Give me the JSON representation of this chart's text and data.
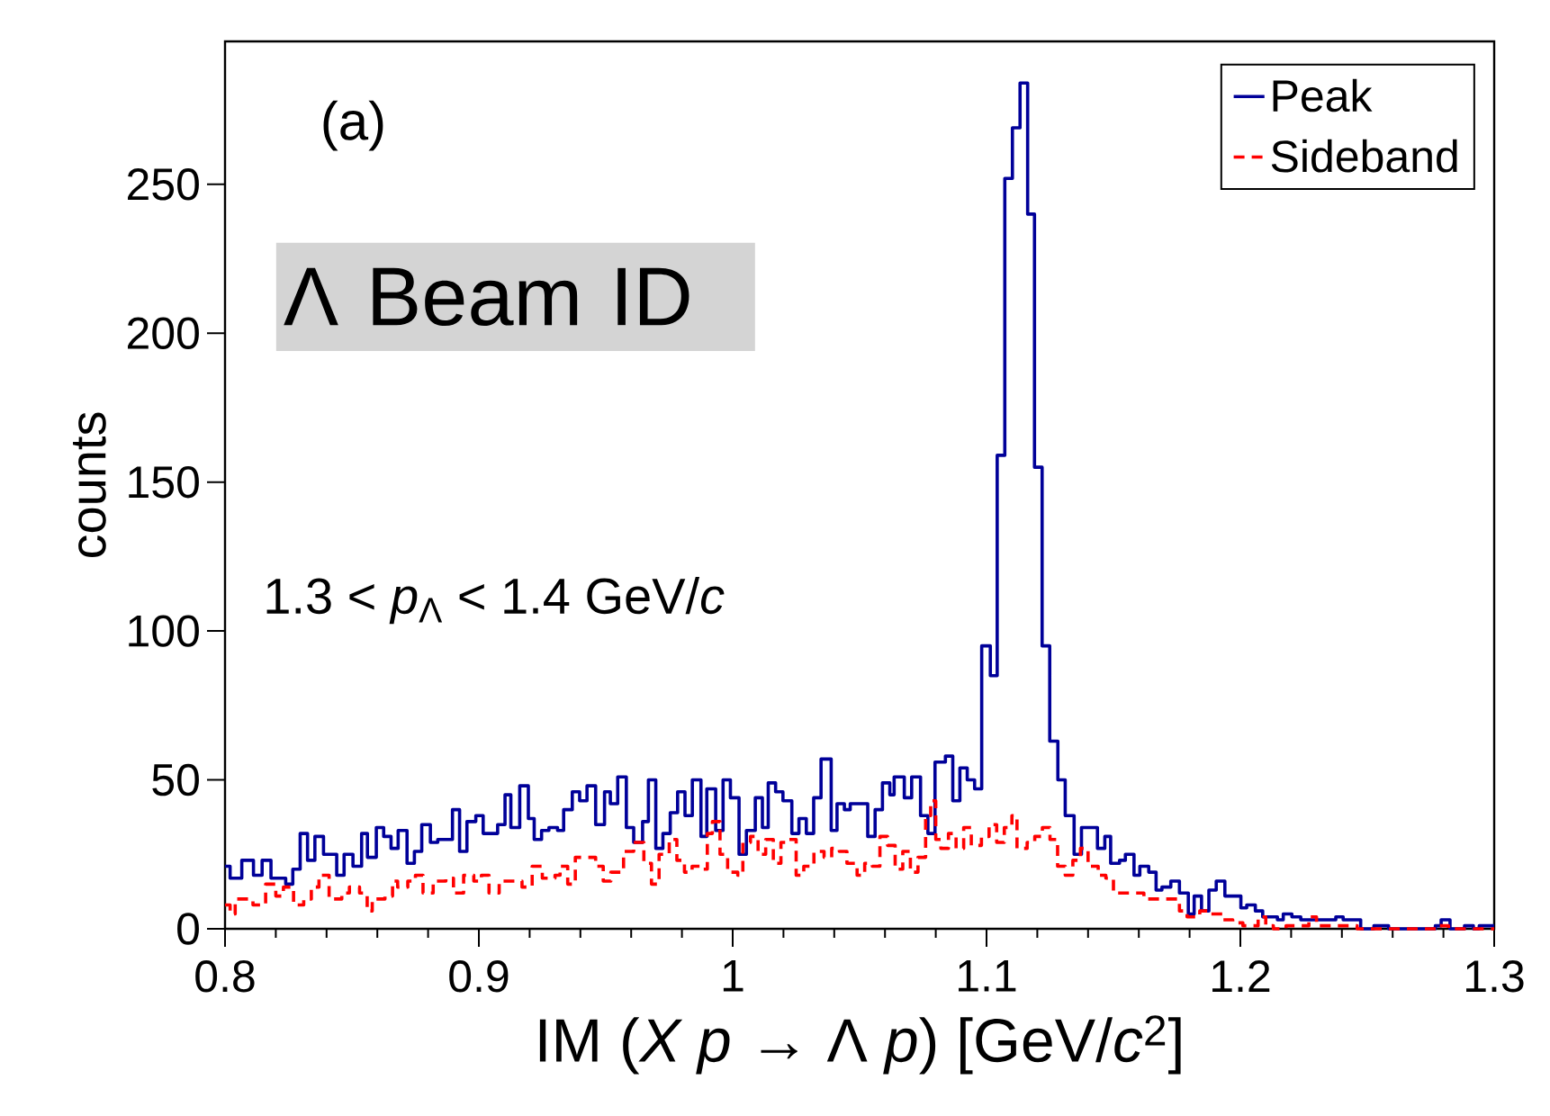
{
  "chart_data": {
    "type": "step",
    "xlabel": "IM (*X p* → Λ *p*) [GeV/*c*$^{2}$]",
    "ylabel": "counts",
    "annotations": [
      "(a)",
      "Λ Beam ID",
      "1.3 < *p*$_{Λ}$ < 1.4 GeV/*c*"
    ],
    "xlim": [
      0.8,
      1.3
    ],
    "ylim": [
      0,
      298
    ],
    "xticks": [
      0.8,
      0.9,
      {
        "value": 1.0,
        "label": "1"
      },
      1.1,
      1.2,
      1.3
    ],
    "yticks": [
      0,
      50,
      100,
      150,
      200,
      250
    ],
    "legend": "top right",
    "series": [
      {
        "name": "Peak",
        "color": "#000099",
        "line_style": "solid",
        "x": [
          0.8,
          0.802,
          0.8066,
          0.8112,
          0.8146,
          0.8181,
          0.8239,
          0.8267,
          0.8296,
          0.8325,
          0.8354,
          0.8388,
          0.844,
          0.8469,
          0.8504,
          0.8538,
          0.8561,
          0.8596,
          0.8625,
          0.8654,
          0.8682,
          0.8717,
          0.8746,
          0.8775,
          0.8809,
          0.8838,
          0.8896,
          0.8924,
          0.8953,
          0.8988,
          0.9017,
          0.9074,
          0.9103,
          0.9126,
          0.9161,
          0.9195,
          0.9218,
          0.9247,
          0.9276,
          0.931,
          0.9334,
          0.9368,
          0.9397,
          0.9426,
          0.946,
          0.9495,
          0.9518,
          0.9547,
          0.9581,
          0.961,
          0.9645,
          0.9668,
          0.9697,
          0.9725,
          0.9754,
          0.9783,
          0.9812,
          0.9841,
          0.9875,
          0.9898,
          0.9933,
          0.9962,
          0.9991,
          1.0025,
          1.0054,
          1.0089,
          1.0117,
          1.014,
          1.0169,
          1.0198,
          1.0233,
          1.0261,
          1.029,
          1.0319,
          1.0348,
          1.0388,
          1.0411,
          1.044,
          1.0463,
          1.0532,
          1.0561,
          1.059,
          1.0619,
          1.0636,
          1.0676,
          1.0705,
          1.074,
          1.0769,
          1.0797,
          1.0838,
          1.0867,
          1.0895,
          1.0924,
          1.0953,
          1.0981,
          1.1015,
          1.1042,
          1.1072,
          1.1102,
          1.1132,
          1.1162,
          1.1189,
          1.1219,
          1.1249,
          1.1281,
          1.131,
          1.1345,
          1.1374,
          1.1437,
          1.1466,
          1.1489,
          1.1524,
          1.1547,
          1.1581,
          1.1604,
          1.1639,
          1.1668,
          1.1691,
          1.1726,
          1.176,
          1.1795,
          1.1818,
          1.1847,
          1.1876,
          1.1905,
          1.1939,
          1.2002,
          1.2025,
          1.2059,
          1.2088,
          1.2146,
          1.2169,
          1.2203,
          1.2238,
          1.2376,
          1.2405,
          1.2474,
          1.2526,
          1.2584,
          1.2768,
          1.2791,
          1.2826,
          1.2883,
          1.2918,
          1.2941,
          1.3
        ],
        "values": [
          21,
          17,
          23,
          18,
          23,
          17,
          15,
          20,
          32,
          23,
          31,
          25,
          18,
          25,
          21,
          32,
          24,
          34,
          31,
          27,
          33,
          22,
          26,
          35,
          29,
          30,
          40,
          26,
          36,
          38,
          32,
          35,
          45,
          34,
          48,
          37,
          30,
          33,
          34,
          33,
          40,
          46,
          43,
          48,
          35,
          46,
          42,
          51,
          34,
          29,
          36,
          50,
          27,
          32,
          39,
          46,
          38,
          50,
          31,
          47,
          33,
          50,
          44,
          25,
          33,
          44,
          34,
          49,
          46,
          43,
          32,
          37,
          32,
          44,
          57,
          33,
          42,
          40,
          42,
          31,
          40,
          49,
          45,
          51,
          44,
          51,
          38,
          32,
          56,
          58,
          43,
          54,
          50,
          47,
          95,
          85,
          159,
          252,
          269,
          284,
          240,
          155,
          95,
          63,
          50,
          38,
          25,
          34,
          27,
          31,
          22,
          23,
          25,
          18,
          21,
          19,
          13,
          14,
          16,
          12,
          5,
          11,
          6,
          13,
          16,
          11,
          7,
          8,
          6,
          4,
          3,
          5,
          4,
          3,
          4,
          3,
          0,
          1,
          0,
          1,
          3,
          0,
          1,
          0,
          1,
          1
        ]
      },
      {
        "name": "Sideband",
        "color": "#ff0000",
        "line_style": "dashed",
        "x": [
          0.8,
          0.802,
          0.804,
          0.811,
          0.816,
          0.82,
          0.823,
          0.827,
          0.831,
          0.834,
          0.837,
          0.841,
          0.846,
          0.849,
          0.853,
          0.856,
          0.858,
          0.863,
          0.866,
          0.868,
          0.872,
          0.875,
          0.878,
          0.882,
          0.887,
          0.89,
          0.894,
          0.898,
          0.901,
          0.904,
          0.908,
          0.912,
          0.917,
          0.921,
          0.925,
          0.93,
          0.932,
          0.935,
          0.938,
          0.942,
          0.946,
          0.949,
          0.952,
          0.957,
          0.961,
          0.965,
          0.968,
          0.971,
          0.975,
          0.978,
          0.981,
          0.984,
          0.988,
          0.99,
          0.992,
          0.995,
          0.998,
          1.002,
          1.004,
          1.007,
          1.01,
          1.013,
          1.016,
          1.019,
          1.022,
          1.025,
          1.028,
          1.032,
          1.036,
          1.039,
          1.042,
          1.045,
          1.049,
          1.052,
          1.055,
          1.058,
          1.061,
          1.064,
          1.067,
          1.07,
          1.073,
          1.076,
          1.078,
          1.08,
          1.082,
          1.085,
          1.088,
          1.091,
          1.094,
          1.098,
          1.101,
          1.104,
          1.107,
          1.11,
          1.112,
          1.116,
          1.119,
          1.122,
          1.125,
          1.128,
          1.131,
          1.134,
          1.137,
          1.14,
          1.144,
          1.147,
          1.15,
          1.156,
          1.162,
          1.17,
          1.176,
          1.179,
          1.184,
          1.188,
          1.193,
          1.197,
          1.201,
          1.207,
          1.21,
          1.213,
          1.218,
          1.224,
          1.227,
          1.23,
          1.246,
          1.277,
          1.282,
          1.3
        ],
        "values": [
          8,
          5,
          10,
          8,
          15,
          11,
          14,
          8,
          10,
          14,
          18,
          10,
          12,
          14,
          12,
          6,
          10,
          11,
          16,
          14,
          16,
          18,
          12,
          16,
          17,
          12,
          18,
          16,
          18,
          12,
          16,
          16,
          14,
          21,
          17,
          18,
          21,
          15,
          24,
          24,
          21,
          16,
          19,
          26,
          29,
          22,
          15,
          25,
          30,
          23,
          19,
          21,
          20,
          32,
          36,
          25,
          19,
          18,
          29,
          31,
          25,
          30,
          22,
          29,
          30,
          18,
          21,
          26,
          24,
          27,
          26,
          22,
          18,
          22,
          21,
          31,
          28,
          20,
          26,
          19,
          24,
          38,
          43,
          30,
          27,
          32,
          27,
          34,
          28,
          31,
          35,
          29,
          34,
          38,
          27,
          29,
          31,
          34,
          30,
          21,
          18,
          23,
          27,
          21,
          18,
          17,
          12,
          12,
          10,
          10,
          6,
          4,
          6,
          5,
          3,
          2,
          1,
          4,
          1,
          0,
          1,
          1,
          4,
          1,
          0,
          1,
          0,
          0
        ]
      }
    ]
  }
}
